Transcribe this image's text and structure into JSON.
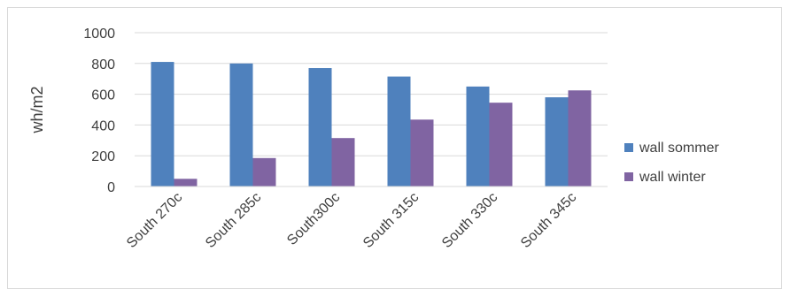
{
  "chart_data": {
    "type": "bar",
    "title": "",
    "xlabel": "",
    "ylabel": "wh/m2",
    "ylim": [
      0,
      1000
    ],
    "yticks": [
      0,
      200,
      400,
      600,
      800,
      1000
    ],
    "grid": true,
    "legend_position": "right",
    "categories": [
      "South 270c",
      "South 285c",
      "South300c",
      "South 315c",
      "South 330c",
      "South 345c"
    ],
    "series": [
      {
        "name": "wall sommer",
        "color": "#4f81bd",
        "values": [
          810,
          800,
          770,
          715,
          650,
          580
        ]
      },
      {
        "name": "wall winter",
        "color": "#8064a2",
        "values": [
          50,
          185,
          315,
          435,
          545,
          625
        ]
      }
    ]
  }
}
